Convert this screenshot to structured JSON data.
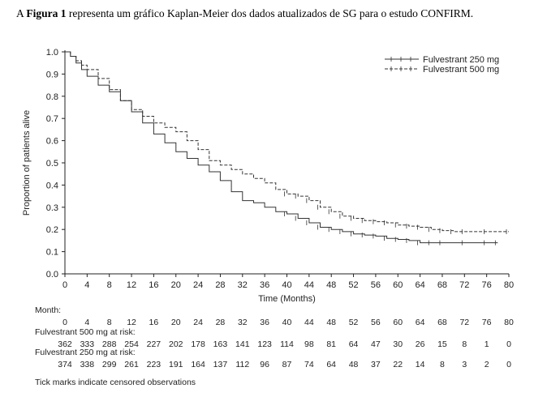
{
  "caption": {
    "prefix": "A ",
    "bold": "Figura 1",
    "rest": " representa um gráfico Kaplan-Meier dos dados atualizados de SG para o estudo CONFIRM."
  },
  "chart_data": {
    "type": "line",
    "xlabel": "Time (Months)",
    "ylabel": "Proportion of patients alive",
    "xlim": [
      0,
      80
    ],
    "ylim": [
      0.0,
      1.0
    ],
    "xticks": [
      0,
      4,
      8,
      12,
      16,
      20,
      24,
      28,
      32,
      36,
      40,
      44,
      48,
      52,
      56,
      60,
      64,
      68,
      72,
      76,
      80
    ],
    "yticks": [
      0.0,
      0.1,
      0.2,
      0.3,
      0.4,
      0.5,
      0.6,
      0.7,
      0.8,
      0.9,
      1.0
    ],
    "legend_position": "top-right",
    "grid": false,
    "series": [
      {
        "name": "Fulvestrant 250 mg",
        "style": "solid",
        "color": "#333333",
        "x": [
          0,
          1,
          2,
          3,
          4,
          6,
          8,
          10,
          12,
          14,
          16,
          18,
          20,
          22,
          24,
          26,
          28,
          30,
          32,
          34,
          36,
          38,
          40,
          42,
          44,
          46,
          48,
          50,
          52,
          54,
          56,
          58,
          60,
          62,
          64,
          66,
          68,
          72,
          76,
          78
        ],
        "y": [
          1.0,
          0.98,
          0.95,
          0.92,
          0.89,
          0.85,
          0.82,
          0.78,
          0.73,
          0.68,
          0.63,
          0.59,
          0.55,
          0.52,
          0.49,
          0.46,
          0.42,
          0.37,
          0.33,
          0.32,
          0.3,
          0.28,
          0.27,
          0.25,
          0.23,
          0.21,
          0.2,
          0.19,
          0.18,
          0.175,
          0.17,
          0.16,
          0.155,
          0.15,
          0.14,
          0.14,
          0.14,
          0.14,
          0.14,
          0.14
        ]
      },
      {
        "name": "Fulvestrant 500 mg",
        "style": "dashed",
        "color": "#333333",
        "x": [
          0,
          1,
          2,
          3,
          4,
          6,
          8,
          10,
          12,
          14,
          16,
          18,
          20,
          22,
          24,
          26,
          28,
          30,
          32,
          34,
          36,
          38,
          40,
          42,
          44,
          46,
          48,
          50,
          52,
          54,
          56,
          58,
          60,
          62,
          64,
          66,
          68,
          70,
          72,
          76,
          80
        ],
        "y": [
          1.0,
          0.98,
          0.96,
          0.94,
          0.92,
          0.88,
          0.83,
          0.78,
          0.74,
          0.71,
          0.68,
          0.66,
          0.64,
          0.6,
          0.56,
          0.51,
          0.49,
          0.47,
          0.45,
          0.43,
          0.41,
          0.38,
          0.36,
          0.35,
          0.33,
          0.3,
          0.28,
          0.26,
          0.25,
          0.24,
          0.235,
          0.23,
          0.22,
          0.215,
          0.21,
          0.2,
          0.195,
          0.19,
          0.19,
          0.19,
          0.19
        ]
      }
    ],
    "risk_table": {
      "month_header": "Month:",
      "months": [
        0,
        4,
        8,
        12,
        16,
        20,
        24,
        28,
        32,
        36,
        40,
        44,
        48,
        52,
        56,
        60,
        64,
        68,
        72,
        76,
        80
      ],
      "rows": [
        {
          "label": "Fulvestrant 500 mg at risk:",
          "values": [
            362,
            333,
            288,
            254,
            227,
            202,
            178,
            163,
            141,
            123,
            114,
            98,
            81,
            64,
            47,
            30,
            26,
            15,
            8,
            1,
            0
          ]
        },
        {
          "label": "Fulvestrant 250 mg at risk:",
          "values": [
            374,
            338,
            299,
            261,
            223,
            191,
            164,
            137,
            112,
            96,
            87,
            74,
            64,
            48,
            37,
            22,
            14,
            8,
            3,
            2,
            0
          ]
        }
      ]
    },
    "footnote": "Tick marks indicate censored observations"
  }
}
